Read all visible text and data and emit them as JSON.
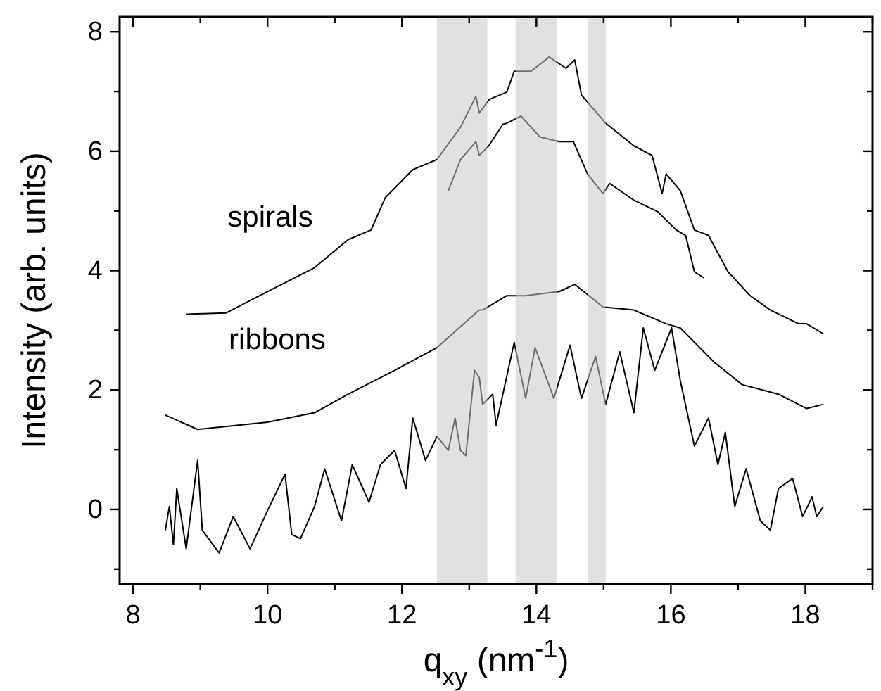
{
  "chart_data": {
    "type": "line",
    "xlabel": "q$_{xy}$ (nm$^{-1}$)",
    "ylabel": "Intensity (arb. units)",
    "xlim": [
      7.8,
      19
    ],
    "ylim": [
      -1.25,
      8.25
    ],
    "xticks": [
      8,
      {
        "value": 9,
        "label": null
      },
      10,
      {
        "value": 11,
        "label": null
      },
      12,
      {
        "value": 13,
        "label": null
      },
      14,
      {
        "value": 15,
        "label": null
      },
      16,
      {
        "value": 17,
        "label": null
      },
      18,
      {
        "value": 19,
        "label": null
      }
    ],
    "yticks": [
      {
        "value": -1,
        "label": null
      },
      0,
      {
        "value": 1,
        "label": null
      },
      2,
      {
        "value": 3,
        "label": null
      },
      4,
      {
        "value": 5,
        "label": null
      },
      6,
      {
        "value": 7,
        "label": null
      },
      8
    ],
    "grid": false,
    "marker": "none",
    "line_style": "solid",
    "bands": [
      {
        "axis": "x",
        "from": 12.52,
        "to": 13.27,
        "color": "#c8c8c8"
      },
      {
        "axis": "x",
        "from": 13.69,
        "to": 14.3,
        "color": "#c8c8c8"
      },
      {
        "axis": "x",
        "from": 14.76,
        "to": 15.03,
        "color": "#c8c8c8"
      }
    ],
    "annotations": [
      "spirals",
      "ribbons"
    ],
    "series": [
      {
        "color": "#000000",
        "x": [
          8.79,
          9.38,
          10.0,
          10.7,
          11.2,
          11.54,
          11.75,
          12.16,
          12.52,
          12.87,
          13.1,
          13.15,
          13.3,
          13.56,
          13.67,
          13.92,
          14.19,
          14.44,
          14.57,
          14.67,
          15.03,
          15.45,
          15.72,
          15.87,
          15.93,
          16.14,
          16.35,
          16.56,
          16.85,
          17.18,
          17.48,
          17.9,
          18.02,
          18.27
        ],
        "values": [
          3.27,
          3.29,
          3.65,
          4.05,
          4.52,
          4.68,
          5.22,
          5.69,
          5.86,
          6.4,
          6.92,
          6.64,
          6.87,
          6.99,
          7.34,
          7.34,
          7.58,
          7.39,
          7.53,
          6.94,
          6.47,
          6.09,
          5.93,
          5.29,
          5.62,
          5.34,
          4.68,
          4.59,
          3.98,
          3.58,
          3.34,
          3.11,
          3.11,
          2.94
        ]
      },
      {
        "color": "#000000",
        "x": [
          12.69,
          12.87,
          13.1,
          13.15,
          13.29,
          13.5,
          13.56,
          13.77,
          14.05,
          14.34,
          14.55,
          14.76,
          14.99,
          15.09,
          15.45,
          15.8,
          16.08,
          16.22,
          16.35,
          16.49
        ],
        "values": [
          5.34,
          5.86,
          6.16,
          5.93,
          6.09,
          6.45,
          6.47,
          6.59,
          6.24,
          6.16,
          6.16,
          5.62,
          5.29,
          5.46,
          5.18,
          4.99,
          4.68,
          4.59,
          3.98,
          3.88
        ]
      },
      {
        "color": "#000000",
        "x": [
          8.48,
          8.96,
          10.0,
          10.7,
          11.2,
          11.89,
          12.52,
          13.15,
          13.2,
          13.56,
          13.84,
          14.34,
          14.57,
          14.99,
          15.45,
          15.93,
          16.14,
          16.64,
          17.06,
          17.6,
          18.02,
          18.27
        ],
        "values": [
          1.58,
          1.34,
          1.46,
          1.62,
          1.93,
          2.33,
          2.71,
          3.34,
          3.34,
          3.58,
          3.58,
          3.65,
          3.77,
          3.39,
          3.34,
          3.11,
          3.04,
          2.47,
          2.09,
          1.93,
          1.69,
          1.76
        ]
      },
      {
        "color": "#000000",
        "x": [
          8.48,
          8.54,
          8.6,
          8.65,
          8.79,
          8.96,
          9.03,
          9.28,
          9.49,
          9.74,
          10.0,
          10.26,
          10.36,
          10.49,
          10.7,
          10.85,
          11.1,
          11.26,
          11.51,
          11.68,
          11.89,
          12.06,
          12.16,
          12.35,
          12.52,
          12.69,
          12.79,
          12.87,
          12.95,
          13.08,
          13.15,
          13.2,
          13.35,
          13.4,
          13.67,
          13.84,
          13.98,
          14.26,
          14.5,
          14.67,
          14.88,
          15.03,
          15.24,
          15.45,
          15.59,
          15.76,
          16.01,
          16.14,
          16.35,
          16.56,
          16.7,
          16.81,
          16.95,
          17.12,
          17.33,
          17.48,
          17.6,
          17.81,
          17.96,
          18.1,
          18.17,
          18.27
        ],
        "values": [
          -0.35,
          0.05,
          -0.59,
          0.35,
          -0.66,
          0.82,
          -0.35,
          -0.73,
          -0.12,
          -0.66,
          -0.02,
          0.59,
          -0.42,
          -0.49,
          0.05,
          0.68,
          -0.19,
          0.75,
          0.12,
          0.75,
          0.99,
          0.35,
          1.53,
          0.82,
          1.22,
          0.99,
          1.53,
          0.99,
          0.9,
          2.33,
          2.21,
          1.76,
          1.93,
          1.41,
          2.8,
          1.86,
          2.71,
          1.86,
          2.75,
          1.86,
          2.56,
          1.76,
          2.64,
          1.62,
          3.04,
          2.33,
          3.04,
          2.16,
          1.06,
          1.53,
          0.75,
          1.29,
          0.05,
          0.68,
          -0.19,
          -0.35,
          0.35,
          0.52,
          -0.12,
          0.21,
          -0.12,
          0.05
        ]
      }
    ]
  }
}
